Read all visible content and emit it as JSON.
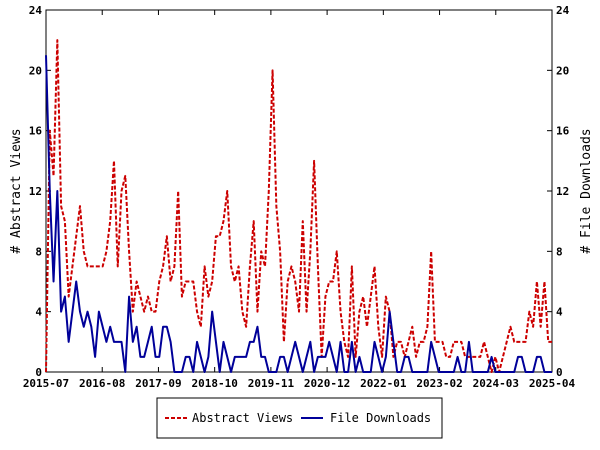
{
  "chart_data": {
    "type": "line",
    "ylabel_left": "# Abstract Views",
    "ylabel_right": "# File Downloads",
    "ylim": [
      0,
      24
    ],
    "yticks": [
      0,
      4,
      8,
      12,
      16,
      20,
      24
    ],
    "xtick_labels": [
      "2015-07",
      "2016-08",
      "2017-09",
      "2018-10",
      "2019-11",
      "2020-12",
      "2022-01",
      "2023-02",
      "2024-03",
      "2025-04"
    ],
    "grid": false,
    "legend_position": "bottom",
    "series": [
      {
        "name": "Abstract Views",
        "color": "#cc0000",
        "style": "dashed",
        "values": [
          0,
          16,
          13,
          22,
          11,
          10,
          5,
          7,
          9,
          11,
          8,
          7,
          7,
          7,
          7,
          7,
          8,
          10,
          14,
          7,
          12,
          13,
          8,
          4,
          6,
          5,
          4,
          5,
          4,
          4,
          6,
          7,
          9,
          6,
          7,
          12,
          5,
          6,
          6,
          6,
          4,
          3,
          7,
          5,
          6,
          9,
          9,
          10,
          12,
          7,
          6,
          7,
          4,
          3,
          7,
          10,
          4,
          8,
          7,
          12,
          20,
          11,
          8,
          2,
          6,
          7,
          6,
          4,
          10,
          4,
          8,
          14,
          7,
          1,
          5,
          6,
          6,
          8,
          4,
          2,
          1,
          7,
          1,
          4,
          5,
          3,
          5,
          7,
          3,
          1,
          5,
          4,
          1,
          2,
          2,
          1,
          2,
          3,
          1,
          2,
          2,
          3,
          8,
          2,
          2,
          2,
          1,
          1,
          2,
          2,
          2,
          1,
          1,
          1,
          1,
          1,
          2,
          1,
          0,
          1,
          0,
          1,
          2,
          3,
          2,
          2,
          2,
          2,
          4,
          3,
          6,
          3,
          6,
          2,
          2
        ]
      },
      {
        "name": "File Downloads",
        "color": "#000099",
        "style": "solid",
        "values": [
          21,
          12,
          6,
          12,
          4,
          5,
          2,
          4,
          6,
          4,
          3,
          4,
          3,
          1,
          4,
          3,
          2,
          3,
          2,
          2,
          2,
          0,
          5,
          2,
          3,
          1,
          1,
          2,
          3,
          1,
          1,
          3,
          3,
          2,
          0,
          0,
          0,
          1,
          1,
          0,
          2,
          1,
          0,
          1,
          4,
          2,
          0,
          2,
          1,
          0,
          1,
          1,
          1,
          1,
          2,
          2,
          3,
          1,
          1,
          0,
          0,
          0,
          1,
          1,
          0,
          1,
          2,
          1,
          0,
          1,
          2,
          0,
          1,
          1,
          1,
          2,
          1,
          0,
          2,
          0,
          0,
          2,
          0,
          1,
          0,
          0,
          0,
          2,
          1,
          0,
          1,
          4,
          2,
          0,
          0,
          1,
          1,
          0,
          0,
          0,
          0,
          0,
          2,
          1,
          0,
          0,
          0,
          0,
          0,
          1,
          0,
          0,
          2,
          0,
          0,
          0,
          0,
          0,
          1,
          0,
          0,
          0,
          0,
          0,
          0,
          1,
          1,
          0,
          0,
          0,
          1,
          1,
          0,
          0,
          0
        ]
      }
    ]
  }
}
